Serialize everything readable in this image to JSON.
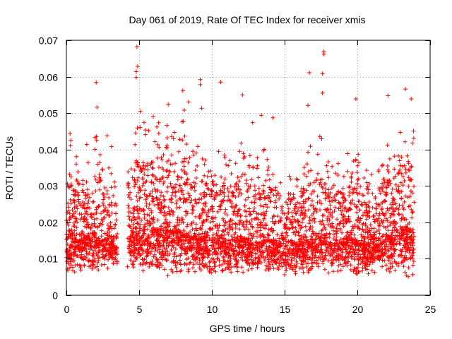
{
  "chart_data": {
    "type": "scatter",
    "title": "Day 061 of 2019, Rate Of TEC Index for receiver xmis",
    "xlabel": "GPS time / hours",
    "ylabel": "ROTI / TECUs",
    "xlim": [
      0,
      25
    ],
    "ylim": [
      0,
      0.07
    ],
    "x_ticks": [
      0,
      5,
      10,
      15,
      20,
      25
    ],
    "y_ticks": [
      0,
      0.01,
      0.02,
      0.03,
      0.04,
      0.05,
      0.06,
      0.07
    ],
    "x_tick_labels": [
      "0",
      "5",
      "10",
      "15",
      "20",
      "25"
    ],
    "y_tick_labels": [
      "0",
      "0.01",
      "0.02",
      "0.03",
      "0.04",
      "0.05",
      "0.06",
      "0.07"
    ],
    "grid": true,
    "marker": "+",
    "color": "#ff0000",
    "data_gap_hours": [
      3.5,
      4.2
    ],
    "data_extent_hours": [
      0,
      23.9
    ],
    "series": [
      {
        "name": "ROTI",
        "notable_points": [
          {
            "x": 4.85,
            "y": 0.0682
          },
          {
            "x": 17.7,
            "y": 0.0668
          },
          {
            "x": 17.7,
            "y": 0.0662
          },
          {
            "x": 4.9,
            "y": 0.0628
          },
          {
            "x": 4.8,
            "y": 0.0614
          },
          {
            "x": 16.7,
            "y": 0.0611
          },
          {
            "x": 17.6,
            "y": 0.0608
          },
          {
            "x": 4.8,
            "y": 0.0598
          },
          {
            "x": 9.2,
            "y": 0.0592
          },
          {
            "x": 10.6,
            "y": 0.0585
          },
          {
            "x": 2.05,
            "y": 0.0584
          },
          {
            "x": 9.2,
            "y": 0.0578
          },
          {
            "x": 23.3,
            "y": 0.0566
          },
          {
            "x": 8.0,
            "y": 0.0562
          },
          {
            "x": 17.6,
            "y": 0.0555
          },
          {
            "x": 22.1,
            "y": 0.0548
          },
          {
            "x": 12.1,
            "y": 0.055
          },
          {
            "x": 23.7,
            "y": 0.0539
          },
          {
            "x": 19.9,
            "y": 0.0539
          },
          {
            "x": 8.4,
            "y": 0.0531
          },
          {
            "x": 7.0,
            "y": 0.0524
          },
          {
            "x": 16.6,
            "y": 0.0521
          },
          {
            "x": 2.1,
            "y": 0.0516
          },
          {
            "x": 9.3,
            "y": 0.0513
          },
          {
            "x": 8.1,
            "y": 0.0508
          },
          {
            "x": 13.4,
            "y": 0.0494
          },
          {
            "x": 14.2,
            "y": 0.0487
          },
          {
            "x": 12.8,
            "y": 0.0474
          },
          {
            "x": 0.25,
            "y": 0.0444
          },
          {
            "x": 0.3,
            "y": 0.0425
          },
          {
            "x": 2.8,
            "y": 0.0438
          },
          {
            "x": 1.4,
            "y": 0.0414
          },
          {
            "x": 3.1,
            "y": 0.0408
          }
        ]
      }
    ],
    "envelope_hours": [
      0,
      0.25,
      0.5,
      1,
      1.5,
      2,
      2.5,
      3,
      3.5,
      4.2,
      4.7,
      5,
      5.5,
      6,
      6.5,
      7,
      7.5,
      8,
      8.5,
      9,
      9.5,
      10,
      10.5,
      11,
      11.5,
      12,
      12.5,
      13,
      13.5,
      14,
      14.5,
      15,
      15.5,
      16,
      16.5,
      17,
      17.5,
      18,
      18.5,
      19,
      19.5,
      20,
      20.5,
      21,
      21.5,
      22,
      22.5,
      23,
      23.5,
      23.9
    ],
    "envelope_low": [
      0.007,
      0.006,
      0.006,
      0.006,
      0.006,
      0.006,
      0.006,
      0.006,
      0.006,
      0.006,
      0.005,
      0.005,
      0.005,
      0.005,
      0.005,
      0.005,
      0.005,
      0.005,
      0.005,
      0.005,
      0.006,
      0.005,
      0.005,
      0.005,
      0.006,
      0.006,
      0.006,
      0.005,
      0.006,
      0.006,
      0.006,
      0.005,
      0.005,
      0.005,
      0.005,
      0.005,
      0.005,
      0.005,
      0.005,
      0.005,
      0.005,
      0.005,
      0.005,
      0.006,
      0.006,
      0.006,
      0.006,
      0.005,
      0.005,
      0.005
    ],
    "envelope_median": [
      0.013,
      0.016,
      0.015,
      0.015,
      0.016,
      0.016,
      0.015,
      0.014,
      0.013,
      0.016,
      0.016,
      0.018,
      0.018,
      0.018,
      0.018,
      0.018,
      0.017,
      0.018,
      0.016,
      0.016,
      0.016,
      0.016,
      0.016,
      0.015,
      0.015,
      0.016,
      0.015,
      0.014,
      0.015,
      0.015,
      0.014,
      0.013,
      0.014,
      0.014,
      0.015,
      0.015,
      0.016,
      0.015,
      0.014,
      0.014,
      0.016,
      0.015,
      0.014,
      0.013,
      0.014,
      0.016,
      0.016,
      0.018,
      0.018,
      0.017
    ],
    "envelope_high": [
      0.025,
      0.033,
      0.028,
      0.03,
      0.028,
      0.033,
      0.03,
      0.027,
      0.024,
      0.03,
      0.034,
      0.038,
      0.036,
      0.037,
      0.035,
      0.036,
      0.033,
      0.036,
      0.03,
      0.032,
      0.031,
      0.031,
      0.032,
      0.029,
      0.03,
      0.032,
      0.03,
      0.029,
      0.03,
      0.031,
      0.028,
      0.026,
      0.027,
      0.027,
      0.03,
      0.031,
      0.033,
      0.03,
      0.029,
      0.028,
      0.03,
      0.03,
      0.027,
      0.026,
      0.028,
      0.031,
      0.032,
      0.036,
      0.037,
      0.034
    ]
  }
}
